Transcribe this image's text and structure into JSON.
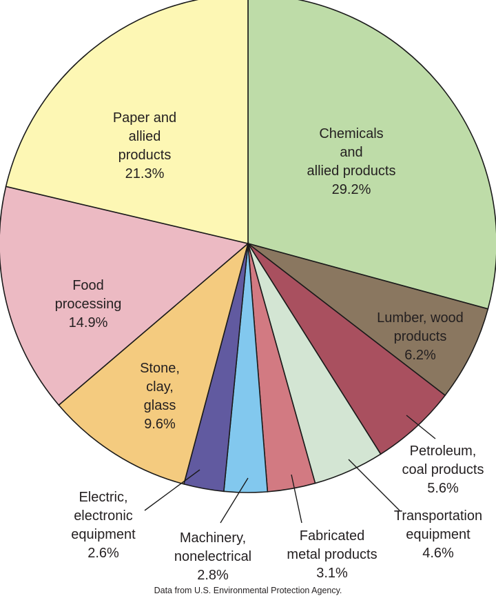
{
  "chart_data": {
    "type": "pie",
    "title": "",
    "slices": [
      {
        "lines": [
          "Chemicals",
          "and",
          "allied products"
        ],
        "pct_text": "29.2%",
        "value": 29.2,
        "color": "#bedca8"
      },
      {
        "lines": [
          "Lumber, wood",
          "products"
        ],
        "pct_text": "6.2%",
        "value": 6.2,
        "color": "#8a7760"
      },
      {
        "lines": [
          "Petroleum,",
          "coal products"
        ],
        "pct_text": "5.6%",
        "value": 5.6,
        "color": "#a9505f"
      },
      {
        "lines": [
          "Transportation",
          "equipment"
        ],
        "pct_text": "4.6%",
        "value": 4.6,
        "color": "#d3e5d3"
      },
      {
        "lines": [
          "Fabricated",
          "metal products"
        ],
        "pct_text": "3.1%",
        "value": 3.1,
        "color": "#d27a82"
      },
      {
        "lines": [
          "Machinery,",
          "nonelectrical"
        ],
        "pct_text": "2.8%",
        "value": 2.8,
        "color": "#82c8ee"
      },
      {
        "lines": [
          "Electric,",
          "electronic",
          "equipment"
        ],
        "pct_text": "2.6%",
        "value": 2.6,
        "color": "#615aa0"
      },
      {
        "lines": [
          "Stone,",
          "clay,",
          "glass"
        ],
        "pct_text": "9.6%",
        "value": 9.6,
        "color": "#f4cb7f"
      },
      {
        "lines": [
          "Food",
          "processing"
        ],
        "pct_text": "14.9%",
        "value": 14.9,
        "color": "#ecbac3"
      },
      {
        "lines": [
          "Paper and",
          "allied",
          "products"
        ],
        "pct_text": "21.3%",
        "value": 21.3,
        "color": "#fdf7b4"
      }
    ],
    "source_note": "Data from U.S. Environmental Protection Agency."
  }
}
